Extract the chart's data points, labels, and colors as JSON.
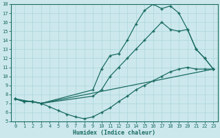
{
  "xlabel": "Humidex (Indice chaleur)",
  "bg_color": "#cce8ec",
  "grid_color": "#b0d8de",
  "line_color": "#1a6b62",
  "xlim": [
    -0.5,
    23.5
  ],
  "ylim": [
    5,
    18
  ],
  "xticks": [
    0,
    1,
    2,
    3,
    4,
    5,
    6,
    7,
    8,
    9,
    10,
    11,
    12,
    13,
    14,
    15,
    16,
    17,
    18,
    19,
    20,
    21,
    22,
    23
  ],
  "yticks": [
    5,
    6,
    7,
    8,
    9,
    10,
    11,
    12,
    13,
    14,
    15,
    16,
    17,
    18
  ],
  "line1_x": [
    0,
    1,
    2,
    3,
    9,
    10,
    11,
    12,
    13,
    14,
    15,
    16,
    17,
    18,
    19,
    20,
    21,
    22,
    23
  ],
  "line1_y": [
    7.5,
    7.2,
    7.2,
    7.0,
    8.5,
    10.8,
    12.3,
    12.5,
    14.0,
    15.8,
    17.3,
    18.0,
    17.5,
    17.8,
    17.0,
    15.2,
    13.0,
    12.0,
    10.8
  ],
  "line2_x": [
    0,
    1,
    2,
    3,
    9,
    10,
    11,
    12,
    13,
    14,
    15,
    16,
    17,
    18,
    19,
    20,
    21,
    22,
    23
  ],
  "line2_y": [
    7.5,
    7.2,
    7.2,
    7.0,
    7.8,
    8.5,
    10.0,
    11.0,
    12.0,
    13.0,
    14.0,
    15.0,
    16.0,
    15.2,
    15.0,
    15.2,
    13.0,
    12.0,
    10.8
  ],
  "line3_x": [
    0,
    1,
    2,
    3,
    4,
    5,
    6,
    7,
    8,
    9,
    10,
    11,
    12,
    13,
    14,
    15,
    16,
    17,
    18,
    19,
    20,
    21,
    22,
    23
  ],
  "line3_y": [
    7.5,
    7.2,
    7.2,
    7.0,
    6.6,
    6.2,
    5.8,
    5.5,
    5.3,
    5.5,
    6.0,
    6.5,
    7.2,
    7.8,
    8.5,
    9.0,
    9.5,
    10.0,
    10.5,
    10.8,
    11.0,
    10.8,
    10.8,
    10.8
  ],
  "line4_x": [
    0,
    3,
    23
  ],
  "line4_y": [
    7.5,
    7.0,
    10.8
  ]
}
